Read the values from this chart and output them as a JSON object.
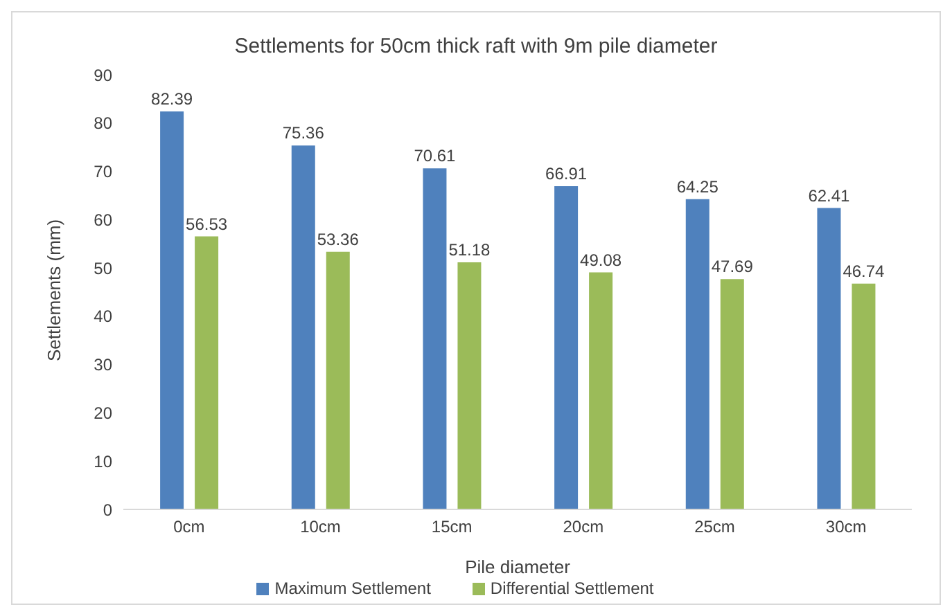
{
  "chart_data": {
    "type": "bar",
    "title": "Settlements for 50cm thick raft with 9m pile diameter",
    "xlabel": "Pile diameter",
    "ylabel": "Settlements (mm)",
    "categories": [
      "0cm",
      "10cm",
      "15cm",
      "20cm",
      "25cm",
      "30cm"
    ],
    "series": [
      {
        "name": "Maximum Settlement",
        "color": "#4f81bd",
        "values": [
          82.39,
          75.36,
          70.61,
          66.91,
          64.25,
          62.41
        ]
      },
      {
        "name": "Differential Settlement",
        "color": "#9bbb59",
        "values": [
          56.53,
          53.36,
          51.18,
          49.08,
          47.69,
          46.74
        ]
      }
    ],
    "ylim": [
      0,
      90
    ],
    "yticks": [
      0,
      10,
      20,
      30,
      40,
      50,
      60,
      70,
      80,
      90
    ],
    "grid": false,
    "legend": "bottom",
    "data_labels": true
  }
}
